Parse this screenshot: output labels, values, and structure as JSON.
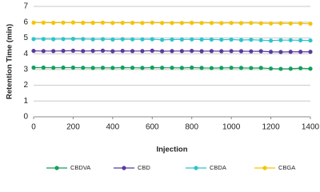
{
  "chart_data": {
    "type": "line",
    "xlabel": "Injection",
    "ylabel": "Retention Time (min)",
    "x": [
      0,
      50,
      100,
      150,
      200,
      250,
      300,
      350,
      400,
      450,
      500,
      550,
      600,
      650,
      700,
      750,
      800,
      850,
      900,
      950,
      1000,
      1050,
      1100,
      1150,
      1200,
      1250,
      1300,
      1350,
      1400
    ],
    "series": [
      {
        "name": "CBDVA",
        "color": "#13a05a",
        "values": [
          3.12,
          3.12,
          3.11,
          3.12,
          3.12,
          3.11,
          3.1,
          3.11,
          3.1,
          3.12,
          3.11,
          3.1,
          3.12,
          3.11,
          3.11,
          3.1,
          3.12,
          3.1,
          3.09,
          3.1,
          3.11,
          3.1,
          3.09,
          3.1,
          3.06,
          3.04,
          3.05,
          3.08,
          3.05
        ]
      },
      {
        "name": "CBD",
        "color": "#5b3aa0",
        "values": [
          4.18,
          4.17,
          4.17,
          4.18,
          4.19,
          4.17,
          4.18,
          4.19,
          4.16,
          4.18,
          4.17,
          4.17,
          4.19,
          4.16,
          4.17,
          4.17,
          4.18,
          4.16,
          4.17,
          4.16,
          4.17,
          4.16,
          4.15,
          4.16,
          4.12,
          4.11,
          4.12,
          4.12,
          4.12
        ]
      },
      {
        "name": "CBDA",
        "color": "#2ec4cc",
        "values": [
          4.93,
          4.93,
          4.92,
          4.93,
          4.94,
          4.93,
          4.91,
          4.92,
          4.9,
          4.92,
          4.91,
          4.91,
          4.92,
          4.88,
          4.9,
          4.9,
          4.91,
          4.9,
          4.9,
          4.89,
          4.9,
          4.87,
          4.89,
          4.86,
          4.83,
          4.86,
          4.86,
          4.85,
          4.84
        ]
      },
      {
        "name": "CBGA",
        "color": "#f5c400",
        "values": [
          5.97,
          5.97,
          5.96,
          5.97,
          5.98,
          5.96,
          5.96,
          5.97,
          5.95,
          5.96,
          5.96,
          5.95,
          5.97,
          5.95,
          5.95,
          5.95,
          5.96,
          5.95,
          5.95,
          5.94,
          5.95,
          5.94,
          5.95,
          5.93,
          5.92,
          5.93,
          5.92,
          5.92,
          5.9
        ]
      }
    ],
    "xlim": [
      0,
      1400
    ],
    "xticks": [
      0,
      200,
      400,
      600,
      800,
      1000,
      1200,
      1400
    ],
    "ylim": [
      0,
      7
    ],
    "yticks": [
      0,
      1,
      2,
      3,
      4,
      5,
      6,
      7
    ],
    "grid": true,
    "legend_position": "bottom"
  }
}
